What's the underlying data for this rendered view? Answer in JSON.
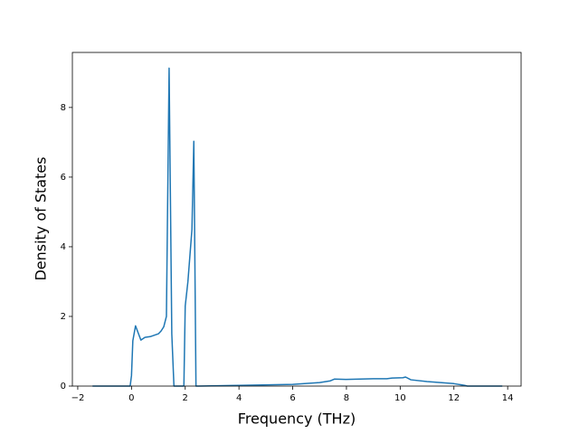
{
  "chart_data": {
    "type": "line",
    "xlabel": "Frequency (THz)",
    "ylabel": "Density of States",
    "x": [
      -1.45,
      -0.05,
      0,
      0.05,
      0.15,
      0.35,
      0.5,
      0.7,
      1.0,
      1.1,
      1.2,
      1.3,
      1.4,
      1.5,
      1.58,
      1.95,
      2.0,
      2.1,
      2.25,
      2.32,
      2.4,
      2.5,
      4,
      6,
      7,
      7.4,
      7.55,
      8,
      9,
      9.5,
      9.7,
      10.1,
      10.2,
      10.4,
      11,
      12,
      12.4,
      12.5,
      13.8
    ],
    "series": [
      {
        "color": "#1f77b4",
        "values": [
          0,
          0,
          0.3,
          1.3,
          1.73,
          1.32,
          1.4,
          1.42,
          1.5,
          1.58,
          1.7,
          2.0,
          9.13,
          1.5,
          0,
          0,
          2.3,
          3.0,
          4.5,
          7.03,
          0,
          0,
          0.02,
          0.05,
          0.1,
          0.15,
          0.2,
          0.19,
          0.21,
          0.21,
          0.23,
          0.24,
          0.26,
          0.18,
          0.13,
          0.07,
          0.02,
          0,
          0
        ]
      }
    ],
    "xlim": [
      -2.2,
      14.5
    ],
    "ylim": [
      0,
      9.58
    ],
    "xticks": [
      {
        "value": -2,
        "label": "−2"
      },
      0,
      2,
      4,
      6,
      8,
      10,
      12,
      14
    ],
    "yticks": [
      0,
      2,
      4,
      6,
      8
    ]
  }
}
